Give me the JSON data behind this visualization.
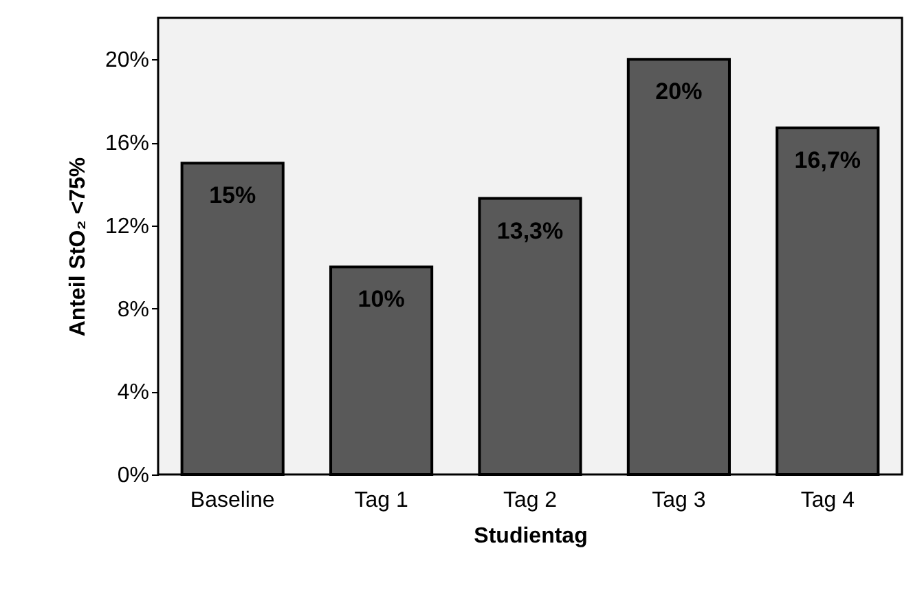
{
  "chart_data": {
    "type": "bar",
    "xlabel": "Studientag",
    "ylabel": "Anteil StO₂ <75%",
    "categories": [
      "Baseline",
      "Tag 1",
      "Tag 2",
      "Tag 3",
      "Tag 4"
    ],
    "values": [
      15,
      10,
      13.3,
      20,
      16.7
    ],
    "value_labels": [
      "15%",
      "10%",
      "13,3%",
      "20%",
      "16,7%"
    ],
    "color": "#595959",
    "ylim": [
      0,
      22
    ],
    "yticks": [
      {
        "value": 0,
        "label": "0%"
      },
      {
        "value": 4,
        "label": "4%"
      },
      {
        "value": 8,
        "label": "8%"
      },
      {
        "value": 12,
        "label": "12%"
      },
      {
        "value": 16,
        "label": "16%"
      },
      {
        "value": 20,
        "label": "20%"
      }
    ]
  }
}
